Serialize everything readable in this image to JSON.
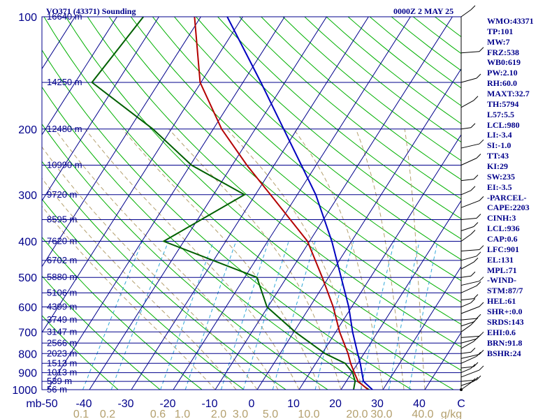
{
  "header": {
    "station": "VO371 (43371) Sounding",
    "time": "0000Z  2 MAY 25"
  },
  "indices": [
    "WMO:43371",
    "TP:101",
    "MW:7",
    "FRZ:538",
    "WB0:619",
    "PW:2.10",
    "RH:60.0",
    "MAXT:32.7",
    "TH:5794",
    "L57:5.5",
    "LCL:980",
    "LI:-3.4",
    "SI:-1.0",
    "TT:43",
    "KI:29",
    "SW:235",
    "EI:-3.5",
    "-PARCEL-",
    "CAPE:2203",
    "CINH:3",
    "LCL:936",
    "CAP:0.6",
    "LFC:901",
    "EL:131",
    "MPL:71",
    "-WIND-",
    "STM:87/7",
    "HEL:61",
    "SHR+:0.0",
    "SRDS:143",
    "EHI:0.6",
    "BRN:91.8",
    "BSHR:24"
  ],
  "colors": {
    "frame": "#00008b",
    "isotherm": "#00008b",
    "dry_adiabat": "#00b000",
    "moist_adiabat": "#b4a06e",
    "mixing_ratio": "#30a8d8",
    "temperature": "#b40000",
    "dewpoint": "#006000",
    "parcel": "#0000c0",
    "wind": "#000000"
  },
  "chart_data": {
    "type": "line",
    "subtype": "skew-T log-P sounding",
    "x_unit": "°C",
    "xlim": [
      -50,
      50
    ],
    "y_unit": "mb",
    "ylim": [
      1000,
      100
    ],
    "y_scale": "log",
    "pressure_ticks": [
      100,
      200,
      300,
      400,
      500,
      600,
      700,
      800,
      900,
      1000
    ],
    "x_ticks": [
      -50,
      -40,
      -30,
      -20,
      -10,
      0,
      10,
      20,
      30,
      40,
      50
    ],
    "x_tick_labels": [
      "mb-50",
      "-40",
      "-30",
      "-20",
      "-10",
      "0",
      "10",
      "20",
      "30",
      "40",
      "C"
    ],
    "mixing_ratio_labels": [
      "0.1",
      "0.2",
      "0.6",
      "1.0",
      "2.0",
      "3.0",
      "5.0",
      "10.0",
      "20.0",
      "30.0",
      "40.0",
      "g/kg"
    ],
    "mixing_ratio_values": [
      0.1,
      0.2,
      0.6,
      1.0,
      2.0,
      3.0,
      5.0,
      10.0,
      20.0,
      30.0,
      40.0
    ],
    "height_levels": [
      {
        "p": 100,
        "label": "16640 m"
      },
      {
        "p": 150,
        "label": "14250 m"
      },
      {
        "p": 200,
        "label": "12480 m"
      },
      {
        "p": 250,
        "label": "10990 m"
      },
      {
        "p": 300,
        "label": "9720 m"
      },
      {
        "p": 350,
        "label": "8595 m"
      },
      {
        "p": 400,
        "label": "7620 m"
      },
      {
        "p": 450,
        "label": "6702 m"
      },
      {
        "p": 500,
        "label": "5880 m"
      },
      {
        "p": 550,
        "label": "5106 m"
      },
      {
        "p": 600,
        "label": "4399 m"
      },
      {
        "p": 650,
        "label": "3749 m"
      },
      {
        "p": 700,
        "label": "3147 m"
      },
      {
        "p": 750,
        "label": "2566 m"
      },
      {
        "p": 800,
        "label": "2023 m"
      },
      {
        "p": 850,
        "label": "1513 m"
      },
      {
        "p": 900,
        "label": "1013 m"
      },
      {
        "p": 950,
        "label": "539 m"
      },
      {
        "p": 1000,
        "label": "56 m"
      }
    ],
    "series": [
      {
        "key": "temperature",
        "values": [
          [
            1000,
            26.5
          ],
          [
            950,
            22.8
          ],
          [
            900,
            20.6
          ],
          [
            850,
            18.3
          ],
          [
            800,
            16.2
          ],
          [
            700,
            10.9
          ],
          [
            600,
            5.6
          ],
          [
            500,
            -1.5
          ],
          [
            400,
            -10.5
          ],
          [
            300,
            -26.4
          ],
          [
            250,
            -36.5
          ],
          [
            200,
            -48.0
          ],
          [
            150,
            -60.2
          ],
          [
            100,
            -71.5
          ]
        ]
      },
      {
        "key": "dewpoint",
        "values": [
          [
            1000,
            23.0
          ],
          [
            950,
            22.1
          ],
          [
            900,
            20.2
          ],
          [
            850,
            17.0
          ],
          [
            800,
            10.7
          ],
          [
            700,
            0.3
          ],
          [
            600,
            -10.2
          ],
          [
            500,
            -17.1
          ],
          [
            400,
            -44.8
          ],
          [
            300,
            -32.6
          ],
          [
            250,
            -49.7
          ],
          [
            200,
            -64.4
          ],
          [
            150,
            -86.0
          ],
          [
            100,
            -83.7
          ]
        ]
      },
      {
        "key": "parcel",
        "values": [
          [
            1000,
            27.5
          ],
          [
            950,
            24.1
          ],
          [
            900,
            22.4
          ],
          [
            850,
            20.6
          ],
          [
            800,
            18.5
          ],
          [
            700,
            14.0
          ],
          [
            600,
            9.3
          ],
          [
            500,
            3.0
          ],
          [
            400,
            -4.7
          ],
          [
            300,
            -15.6
          ],
          [
            250,
            -23.5
          ],
          [
            200,
            -33.2
          ],
          [
            150,
            -45.7
          ],
          [
            100,
            -63.7
          ]
        ]
      }
    ],
    "wind_barb_levels": [
      1000,
      975,
      950,
      925,
      900,
      875,
      850,
      825,
      800,
      775,
      750,
      725,
      700,
      675,
      650,
      625,
      600,
      575,
      550,
      525,
      500,
      475,
      450,
      425,
      400,
      375,
      350,
      325,
      300,
      275,
      250,
      225,
      200,
      175,
      150,
      125,
      100
    ]
  }
}
